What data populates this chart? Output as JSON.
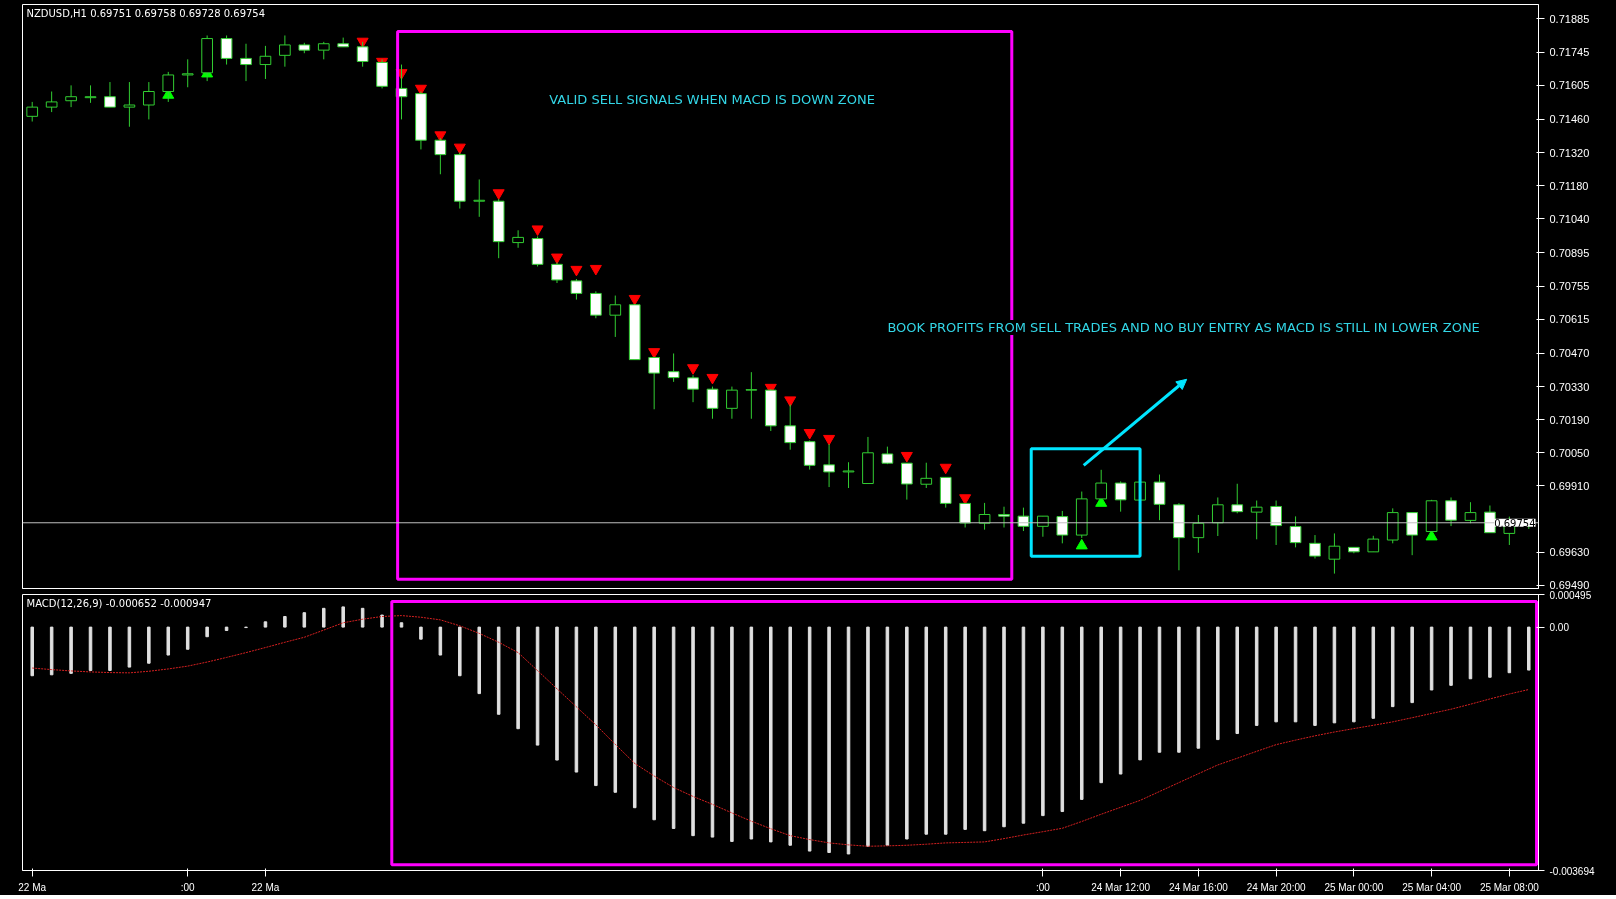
{
  "chart_data": [
    {
      "type": "candlestick",
      "title": "NZDUSD,H1  0.69751 0.69758 0.69728 0.69754",
      "tick_labels": "y",
      "categories": [
        null,
        null,
        null,
        null,
        null,
        null,
        null,
        null,
        null,
        null,
        null,
        null,
        null,
        null,
        null,
        null,
        null,
        null,
        null,
        null,
        null,
        null,
        null,
        null,
        null,
        null,
        null,
        null,
        null,
        null,
        null,
        null,
        null,
        null,
        null,
        null,
        null,
        null,
        null,
        null,
        null,
        null,
        null,
        null,
        null,
        null,
        null,
        null,
        null,
        null,
        null,
        null,
        null,
        null,
        null,
        null,
        null,
        null,
        null,
        null,
        null,
        null,
        null,
        null,
        null,
        null,
        null,
        null,
        null,
        null,
        null,
        null,
        null,
        null,
        null,
        null,
        null,
        null
      ],
      "ohlc": [
        [
          0.71473,
          0.71534,
          0.71451,
          0.71512
        ],
        [
          0.71512,
          0.71578,
          0.71491,
          0.71534
        ],
        [
          0.71539,
          0.71604,
          0.71512,
          0.71556
        ],
        [
          0.71552,
          0.71604,
          0.7153,
          0.71556
        ],
        [
          0.71556,
          0.71618,
          0.71512,
          0.71512
        ],
        [
          0.71512,
          0.71618,
          0.71429,
          0.71521
        ],
        [
          0.71521,
          0.71618,
          0.7146,
          0.71578
        ],
        [
          0.71578,
          0.71661,
          0.71534,
          0.71648
        ],
        [
          0.71648,
          0.71714,
          0.71596,
          0.71653
        ],
        [
          0.71657,
          0.71815,
          0.71622,
          0.71802
        ],
        [
          0.71802,
          0.71815,
          0.71692,
          0.71718
        ],
        [
          0.71718,
          0.7178,
          0.71622,
          0.71692
        ],
        [
          0.71692,
          0.71771,
          0.71631,
          0.71727
        ],
        [
          0.71731,
          0.71815,
          0.71683,
          0.71775
        ],
        [
          0.71775,
          0.71784,
          0.7174,
          0.71753
        ],
        [
          0.71753,
          0.71788,
          0.71714,
          0.7178
        ],
        [
          0.7178,
          0.71806,
          0.71767,
          0.71767
        ],
        [
          0.71767,
          0.71788,
          0.71683,
          0.71705
        ],
        [
          0.71701,
          0.71714,
          0.71591,
          0.716
        ],
        [
          0.71591,
          0.71692,
          0.7146,
          0.71556
        ],
        [
          0.71569,
          0.71578,
          0.71333,
          0.71372
        ],
        [
          0.71372,
          0.71381,
          0.71228,
          0.71311
        ],
        [
          0.71311,
          0.7132,
          0.71083,
          0.71114
        ],
        [
          0.71114,
          0.71206,
          0.71048,
          0.71118
        ],
        [
          0.71114,
          0.71123,
          0.70873,
          0.70943
        ],
        [
          0.70939,
          0.70991,
          0.70917,
          0.70961
        ],
        [
          0.70956,
          0.70965,
          0.70838,
          0.70847
        ],
        [
          0.70847,
          0.70855,
          0.70768,
          0.70781
        ],
        [
          0.70777,
          0.70785,
          0.70698,
          0.70724
        ],
        [
          0.70724,
          0.70733,
          0.70619,
          0.70632
        ],
        [
          0.70632,
          0.70715,
          0.7054,
          0.70676
        ],
        [
          0.70676,
          0.7068,
          0.70444,
          0.70444
        ],
        [
          0.70453,
          0.70457,
          0.70234,
          0.70387
        ],
        [
          0.70393,
          0.7047,
          0.7035,
          0.70368
        ],
        [
          0.70367,
          0.70378,
          0.70264,
          0.70319
        ],
        [
          0.70319,
          0.7033,
          0.70194,
          0.70238
        ],
        [
          0.70238,
          0.7033,
          0.70194,
          0.70315
        ],
        [
          0.70315,
          0.70391,
          0.70194,
          0.70317
        ],
        [
          0.70315,
          0.70319,
          0.70142,
          0.70164
        ],
        [
          0.70164,
          0.70255,
          0.70063,
          0.70093
        ],
        [
          0.70097,
          0.70102,
          0.69979,
          0.69997
        ],
        [
          0.69999,
          0.70087,
          0.69905,
          0.69969
        ],
        [
          0.69969,
          0.7001,
          0.69901,
          0.69973
        ],
        [
          0.6992,
          0.70117,
          0.6992,
          0.7005
        ],
        [
          0.70045,
          0.70076,
          0.70002,
          0.70006
        ],
        [
          0.70006,
          0.70006,
          0.69852,
          0.69918
        ],
        [
          0.69917,
          0.70008,
          0.69901,
          0.69942
        ],
        [
          0.69946,
          0.69946,
          0.69818,
          0.69836
        ],
        [
          0.69836,
          0.69836,
          0.69734,
          0.69753
        ],
        [
          0.69752,
          0.69838,
          0.69725,
          0.69789
        ],
        [
          0.69789,
          0.69822,
          0.69734,
          0.69782
        ],
        [
          0.69782,
          0.69818,
          0.69719,
          0.69739
        ],
        [
          0.69739,
          0.69782,
          0.69695,
          0.69782
        ],
        [
          0.6978,
          0.69804,
          0.69667,
          0.69702
        ],
        [
          0.69702,
          0.69886,
          0.6969,
          0.69855
        ],
        [
          0.69855,
          0.69978,
          0.69855,
          0.69922
        ],
        [
          0.69922,
          0.69929,
          0.69801,
          0.69851
        ],
        [
          0.6985,
          0.69926,
          0.6985,
          0.69926
        ],
        [
          0.69926,
          0.69958,
          0.69765,
          0.69832
        ],
        [
          0.6983,
          0.69837,
          0.69553,
          0.69691
        ],
        [
          0.69691,
          0.69787,
          0.69627,
          0.69752
        ],
        [
          0.69754,
          0.69861,
          0.69698,
          0.6983
        ],
        [
          0.6983,
          0.69919,
          0.69794,
          0.69801
        ],
        [
          0.69799,
          0.69848,
          0.69684,
          0.6982
        ],
        [
          0.69823,
          0.69848,
          0.6966,
          0.69742
        ],
        [
          0.69738,
          0.69781,
          0.6965,
          0.6967
        ],
        [
          0.69667,
          0.69702,
          0.69603,
          0.69613
        ],
        [
          0.696,
          0.69709,
          0.69539,
          0.69655
        ],
        [
          0.6965,
          0.6965,
          0.69625,
          0.69631
        ],
        [
          0.69631,
          0.69699,
          0.69631,
          0.69685
        ],
        [
          0.69681,
          0.69815,
          0.69667,
          0.69797
        ],
        [
          0.69797,
          0.69797,
          0.69617,
          0.69702
        ],
        [
          0.69717,
          0.69851,
          0.69717,
          0.69847
        ],
        [
          0.69847,
          0.69861,
          0.6974,
          0.69765
        ],
        [
          0.69764,
          0.69841,
          0.69752,
          0.69797
        ],
        [
          0.69799,
          0.69827,
          0.69712,
          0.69712
        ],
        [
          0.69709,
          0.6978,
          0.6966,
          0.69749
        ],
        [
          0.69751,
          0.69758,
          0.69728,
          0.69754
        ]
      ],
      "series": [
        {
          "type": "scatter",
          "marker": "triangle",
          "color": "#ff0000",
          "values": [
            null,
            null,
            null,
            null,
            null,
            null,
            null,
            null,
            null,
            null,
            null,
            null,
            null,
            null,
            null,
            null,
            null,
            0.7179,
            0.71705,
            0.71657,
            0.71591,
            0.71394,
            0.71342,
            null,
            0.71149,
            null,
            0.70996,
            0.70877,
            0.70825,
            0.70829,
            null,
            0.70702,
            0.70477,
            null,
            0.70409,
            0.70368,
            null,
            null,
            0.70326,
            0.70273,
            0.70135,
            0.7011,
            null,
            null,
            null,
            0.70038,
            null,
            0.69988,
            0.69859,
            null,
            null,
            null,
            null,
            null,
            null,
            null,
            null,
            null,
            null,
            null,
            null,
            null,
            null,
            null,
            null,
            null,
            null,
            null,
            null,
            null,
            null,
            null,
            null,
            null,
            null,
            null,
            null,
            null
          ]
        },
        {
          "type": "scatter",
          "marker": "triangle",
          "color": "#00ff00",
          "values": [
            null,
            null,
            null,
            null,
            null,
            null,
            null,
            0.71563,
            null,
            0.71653,
            null,
            null,
            null,
            null,
            null,
            null,
            null,
            null,
            null,
            null,
            null,
            null,
            null,
            null,
            null,
            null,
            null,
            null,
            null,
            null,
            null,
            null,
            null,
            null,
            null,
            null,
            null,
            null,
            null,
            null,
            null,
            null,
            null,
            null,
            null,
            null,
            null,
            null,
            null,
            null,
            null,
            null,
            null,
            null,
            0.69657,
            0.69837,
            null,
            null,
            null,
            null,
            null,
            null,
            null,
            null,
            null,
            null,
            null,
            null,
            null,
            null,
            null,
            null,
            0.69695,
            null,
            null,
            null,
            null,
            null
          ]
        }
      ],
      "ylim": [
        0.69476,
        0.71946
      ],
      "yticks": [
        {
          "value": 0.71885,
          "label": "0.71885"
        },
        {
          "value": 0.71745,
          "label": "0.71745"
        },
        {
          "value": 0.71605,
          "label": "0.71605"
        },
        {
          "value": 0.7146,
          "label": "0.71460"
        },
        {
          "value": 0.7132,
          "label": "0.71320"
        },
        {
          "value": 0.7118,
          "label": "0.71180"
        },
        {
          "value": 0.7104,
          "label": "0.71040"
        },
        {
          "value": 0.70895,
          "label": "0.70895"
        },
        {
          "value": 0.70755,
          "label": "0.70755"
        },
        {
          "value": 0.70615,
          "label": "0.70615"
        },
        {
          "value": 0.7047,
          "label": "0.70470"
        },
        {
          "value": 0.7033,
          "label": "0.70330"
        },
        {
          "value": 0.7019,
          "label": "0.70190"
        },
        {
          "value": 0.7005,
          "label": "0.70050"
        },
        {
          "value": 0.6991,
          "label": "0.69910"
        },
        {
          "value": 0.6963,
          "label": "0.69630"
        },
        {
          "value": 0.6949,
          "label": "0.69490"
        }
      ],
      "ref_lines": [
        {
          "axis": "y",
          "value": 0.69754,
          "label": "0.69754",
          "color": "#c0c0c0"
        }
      ],
      "annotations": [
        "VALID SELL SIGNALS WHEN MACD IS DOWN ZONE",
        "BOOK PROFITS FROM SELL TRADES AND NO BUY ENTRY AS MACD IS STILL IN LOWER ZONE"
      ]
    },
    {
      "type": "bar",
      "title": "MACD(12,26,9) -0.000652 -0.000947",
      "categories": [
        "22 Ma",
        null,
        null,
        null,
        null,
        null,
        null,
        null,
        ":00",
        null,
        null,
        null,
        "22 Ma",
        null,
        null,
        null,
        null,
        null,
        null,
        null,
        null,
        null,
        null,
        null,
        null,
        null,
        null,
        null,
        null,
        null,
        null,
        null,
        null,
        null,
        null,
        null,
        null,
        null,
        null,
        null,
        null,
        null,
        null,
        null,
        null,
        null,
        null,
        null,
        null,
        null,
        null,
        null,
        ":00",
        null,
        null,
        null,
        "24 Mar 12:00",
        null,
        null,
        null,
        "24 Mar 16:00",
        null,
        null,
        null,
        "24 Mar 20:00",
        null,
        null,
        null,
        "25 Mar 00:00",
        null,
        null,
        null,
        "25 Mar 04:00",
        null,
        null,
        null,
        "25 Mar 08:00",
        null
      ],
      "series": [
        {
          "type": "bar",
          "color": "#e0e0e0",
          "values": [
            -0.000738,
            -0.000724,
            -0.000702,
            -0.000658,
            -0.000658,
            -0.000607,
            -0.000548,
            -0.000424,
            -0.000336,
            -0.000146,
            -5.1e-05,
            -7e-06,
            8e-05,
            0.000161,
            0.000219,
            0.000285,
            0.000307,
            0.000285,
            0.000183,
            6.6e-05,
            -0.000183,
            -0.000424,
            -0.000738,
            -0.001009,
            -0.001323,
            -0.001542,
            -0.001791,
            -0.002018,
            -0.0022,
            -0.002405,
            -0.002507,
            -0.002741,
            -0.002924,
            -0.003056,
            -0.003165,
            -0.003187,
            -0.003253,
            -0.003216,
            -0.00326,
            -0.003311,
            -0.003399,
            -0.003421,
            -0.003443,
            -0.003326,
            -0.003311,
            -0.003216,
            -0.003143,
            -0.003143,
            -0.00307,
            -0.00309,
            -0.00303,
            -0.002976,
            -0.002861,
            -0.002799,
            -0.002615,
            -0.002361,
            -0.00223,
            -0.002015,
            -0.001899,
            -0.001899,
            -0.001838,
            -0.001707,
            -0.001615,
            -0.001492,
            -0.001438,
            -0.001438,
            -0.001492,
            -0.001453,
            -0.001438,
            -0.001384,
            -0.001207,
            -0.001146,
            -0.000954,
            -0.000884,
            -0.000784,
            -0.000761,
            -0.000692,
            -0.000652
          ]
        },
        {
          "type": "line",
          "color": "#d42020",
          "line_style": "dotted",
          "values": [
            -0.000621,
            -0.000645,
            -0.000665,
            -0.00068,
            -0.00069,
            -0.000694,
            -0.00067,
            -0.000635,
            -0.000592,
            -0.00053,
            -0.00046,
            -0.000387,
            -0.00031,
            -0.00023,
            -0.000154,
            -4.5e-05,
            6.6e-05,
            0.00012,
            0.000161,
            0.000175,
            0.00015,
            0.00011,
            2e-05,
            -9.5e-05,
            -0.00023,
            -0.000387,
            -0.00066,
            -0.000936,
            -0.00121,
            -0.001484,
            -0.00178,
            -0.002069,
            -0.00226,
            -0.002434,
            -0.00257,
            -0.00269,
            -0.00282,
            -0.002946,
            -0.00306,
            -0.003165,
            -0.003225,
            -0.003275,
            -0.003305,
            -0.003326,
            -0.00332,
            -0.003311,
            -0.003295,
            -0.003275,
            -0.003268,
            -0.00326,
            -0.00321,
            -0.003155,
            -0.003105,
            -0.003053,
            -0.00295,
            -0.00284,
            -0.002735,
            -0.00263,
            -0.002495,
            -0.00236,
            -0.002225,
            -0.002092,
            -0.00199,
            -0.001885,
            -0.001784,
            -0.001715,
            -0.00165,
            -0.001592,
            -0.00154,
            -0.00149,
            -0.001438,
            -0.001375,
            -0.00131,
            -0.001246,
            -0.00117,
            -0.00109,
            -0.001015,
            -0.000947
          ]
        }
      ],
      "ylim": [
        -0.003694,
        0.000495
      ],
      "yticks": [
        {
          "value": 0.000495,
          "label": "0.000495"
        },
        {
          "value": 0,
          "label": "0.00"
        },
        {
          "value": -0.003694,
          "label": "-0.003694"
        }
      ]
    }
  ]
}
